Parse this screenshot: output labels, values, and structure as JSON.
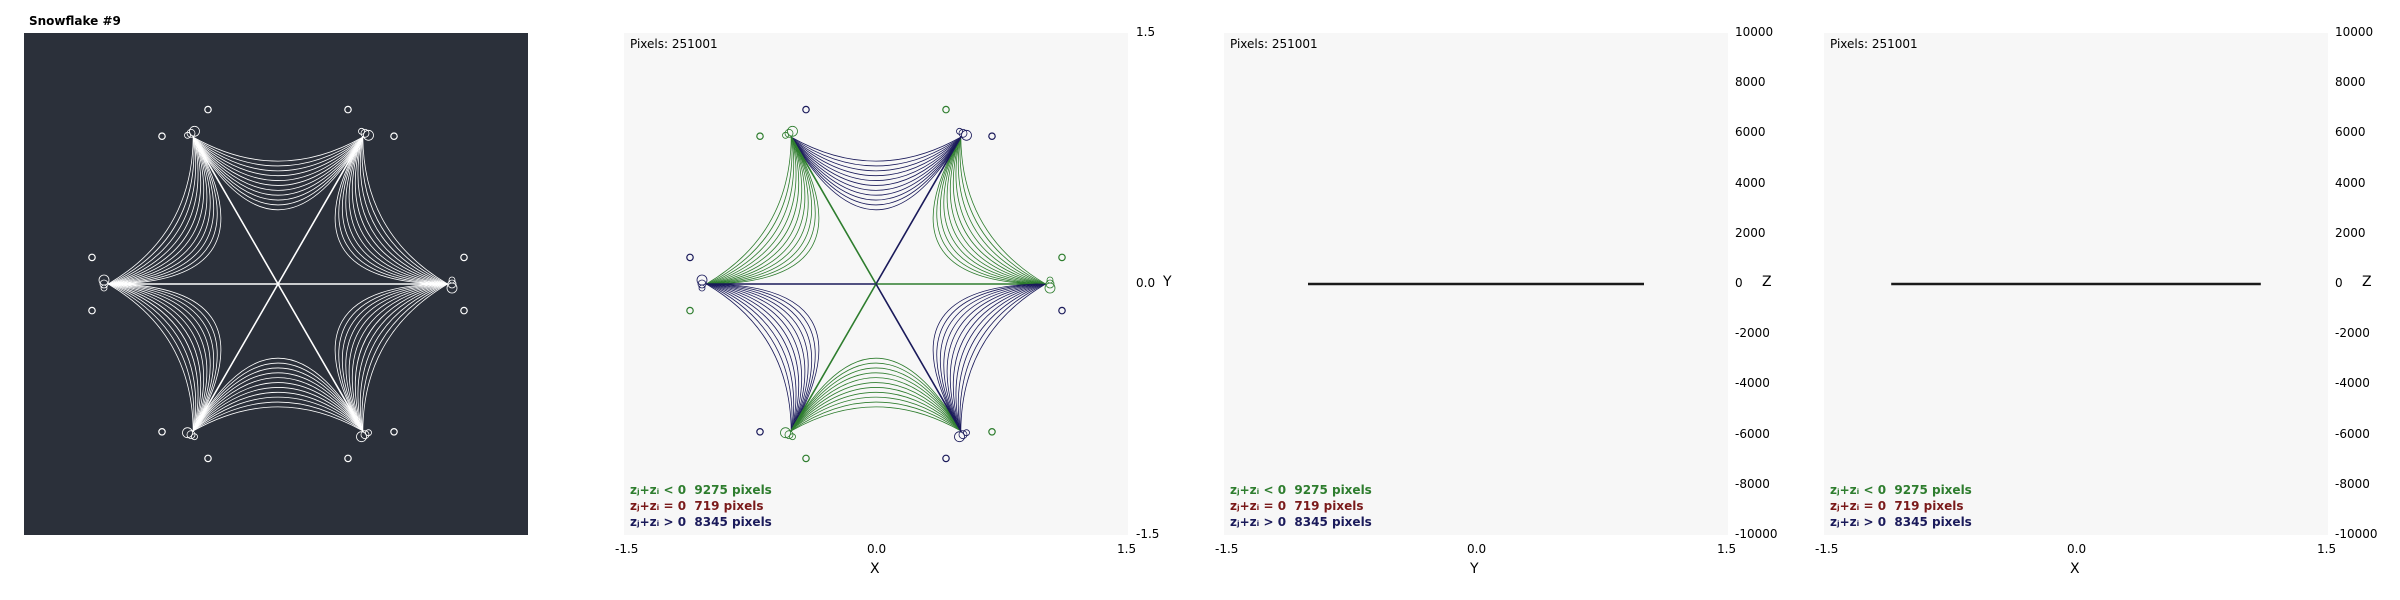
{
  "title": "Snowflake #9",
  "pixels_label": "Pixels: 251001",
  "legend": [
    {
      "label": "zⱼ+zᵢ < 0",
      "count": "9275 pixels",
      "color": "#2e7d2e"
    },
    {
      "label": "zⱼ+zᵢ = 0",
      "count": "719 pixels",
      "color": "#7a1a1a"
    },
    {
      "label": "zⱼ+zᵢ > 0",
      "count": "8345 pixels",
      "color": "#1a1a5a"
    }
  ],
  "colors": {
    "dark_bg": "#2b303a",
    "light_bg": "#f7f7f7",
    "green": "#2e7d2e",
    "blue": "#1a1a5a",
    "white": "#ffffff"
  },
  "chart_data": [
    {
      "type": "image",
      "title": "Snowflake #9"
    },
    {
      "type": "scatter",
      "xlabel": "X",
      "ylabel": "Y",
      "x_ticks": [
        "-1.5",
        "0.0",
        "1.5"
      ],
      "y_ticks": [
        "1.5",
        "0.0",
        "-1.5"
      ],
      "xlim": [
        -1.5,
        1.5
      ],
      "ylim": [
        -1.5,
        1.5
      ]
    },
    {
      "type": "scatter",
      "xlabel": "Y",
      "ylabel": "Z",
      "x_ticks": [
        "-1.5",
        "0.0",
        "1.5"
      ],
      "y_ticks": [
        "10000",
        "8000",
        "6000",
        "4000",
        "2000",
        "0",
        "-2000",
        "-4000",
        "-6000",
        "-8000",
        "-10000"
      ],
      "xlim": [
        -1.5,
        1.5
      ],
      "ylim": [
        -10000,
        10000
      ],
      "line_extent_x": [
        -1.0,
        1.0
      ],
      "line_z": 0
    },
    {
      "type": "scatter",
      "xlabel": "X",
      "ylabel": "Z",
      "x_ticks": [
        "-1.5",
        "0.0",
        "1.5"
      ],
      "y_ticks": [
        "10000",
        "8000",
        "6000",
        "4000",
        "2000",
        "0",
        "-2000",
        "-4000",
        "-6000",
        "-8000",
        "-10000"
      ],
      "xlim": [
        -1.5,
        1.5
      ],
      "ylim": [
        -10000,
        10000
      ],
      "line_extent_x": [
        -1.1,
        1.1
      ],
      "line_z": 0
    }
  ]
}
